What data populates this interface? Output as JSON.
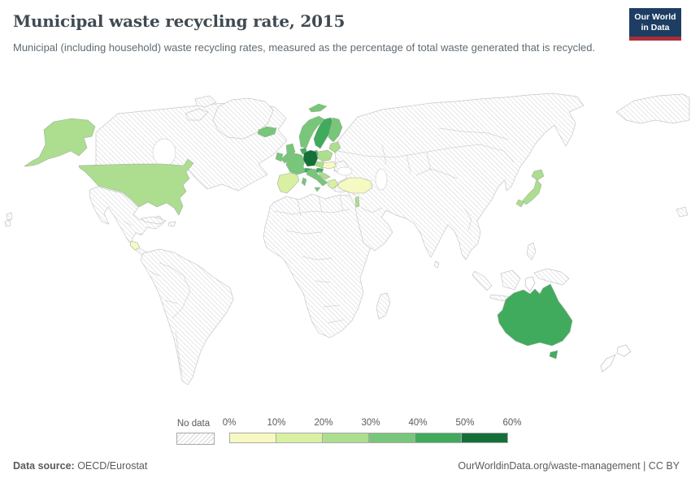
{
  "header": {
    "title": "Municipal waste recycling rate, 2015",
    "subtitle": "Municipal (including household) waste recycling rates, measured as the percentage of total waste generated that is recycled.",
    "logo": {
      "line1": "Our World",
      "line2": "in Data",
      "bg_color": "#1d3d63",
      "accent_color": "#a82f38"
    }
  },
  "legend": {
    "no_data_label": "No data",
    "ticks": [
      "0%",
      "10%",
      "20%",
      "30%",
      "40%",
      "50%",
      "60%"
    ],
    "bins": [
      {
        "label": "0%-10%",
        "color": "#f7f9c2"
      },
      {
        "label": "10%-20%",
        "color": "#d9f0a3"
      },
      {
        "label": "20%-30%",
        "color": "#addd8e"
      },
      {
        "label": "30%-40%",
        "color": "#78c679"
      },
      {
        "label": "40%-50%",
        "color": "#41ab5d"
      },
      {
        "label": "50%-60%",
        "color": "#156f38"
      }
    ]
  },
  "footer": {
    "source_label": "Data source:",
    "source_value": " OECD/Eurostat",
    "right_text": "OurWorldinData.org/waste-management | CC BY"
  },
  "chart_data": {
    "type": "choropleth",
    "title": "Municipal waste recycling rate, 2015",
    "unit": "%",
    "scale_bins": [
      "0-10%",
      "10-20%",
      "20-30%",
      "30-40%",
      "40-50%",
      "50-60%"
    ],
    "countries": [
      {
        "id": "united-states",
        "name": "United States",
        "value": 26,
        "bin": 2
      },
      {
        "id": "costa-rica",
        "name": "Costa Rica",
        "value": 7,
        "bin": 0
      },
      {
        "id": "iceland",
        "name": "Iceland",
        "value": 35,
        "bin": 3
      },
      {
        "id": "norway",
        "name": "Norway",
        "value": 38,
        "bin": 3
      },
      {
        "id": "svalbard",
        "name": "Svalbard (Norway)",
        "value": 38,
        "bin": 3
      },
      {
        "id": "sweden",
        "name": "Sweden",
        "value": 48,
        "bin": 4
      },
      {
        "id": "finland",
        "name": "Finland",
        "value": 38,
        "bin": 3
      },
      {
        "id": "denmark",
        "name": "Denmark",
        "value": 45,
        "bin": 4
      },
      {
        "id": "united-kingdom",
        "name": "United Kingdom",
        "value": 39,
        "bin": 3
      },
      {
        "id": "ireland",
        "name": "Ireland",
        "value": 38,
        "bin": 3
      },
      {
        "id": "france",
        "name": "France",
        "value": 38,
        "bin": 3
      },
      {
        "id": "benelux",
        "name": "Belgium & Netherlands",
        "value": 47,
        "bin": 4
      },
      {
        "id": "germany",
        "name": "Germany",
        "value": 58,
        "bin": 5
      },
      {
        "id": "poland",
        "name": "Poland",
        "value": 26,
        "bin": 2
      },
      {
        "id": "czechia",
        "name": "Czechia",
        "value": 25,
        "bin": 2
      },
      {
        "id": "austria",
        "name": "Austria",
        "value": 48,
        "bin": 4
      },
      {
        "id": "switzerland",
        "name": "Switzerland",
        "value": 48,
        "bin": 4
      },
      {
        "id": "hungary-slovakia",
        "name": "Slovakia & Hungary",
        "value": 8,
        "bin": 0
      },
      {
        "id": "baltics",
        "name": "Baltic states",
        "value": 25,
        "bin": 2
      },
      {
        "id": "slovenia-croatia",
        "name": "Slovenia & Croatia",
        "value": 25,
        "bin": 2
      },
      {
        "id": "italy",
        "name": "Italy",
        "value": 38,
        "bin": 3
      },
      {
        "id": "greece",
        "name": "Greece",
        "value": 15,
        "bin": 1
      },
      {
        "id": "spain-portugal",
        "name": "Spain & Portugal",
        "value": 17,
        "bin": 1
      },
      {
        "id": "turkey",
        "name": "Turkey",
        "value": 8,
        "bin": 0
      },
      {
        "id": "israel",
        "name": "Israel",
        "value": 25,
        "bin": 2
      },
      {
        "id": "japan",
        "name": "Japan",
        "value": 22,
        "bin": 2
      },
      {
        "id": "australia",
        "name": "Australia",
        "value": 45,
        "bin": 4
      }
    ],
    "no_data_regions": [
      "Canada",
      "Greenland",
      "Mexico",
      "Cuba",
      "South America",
      "Africa",
      "Russia",
      "Eastern Europe (Balkans)",
      "Middle East",
      "Central Asia",
      "China",
      "India",
      "Southeast Asia",
      "Indonesia",
      "South Korea",
      "Papua New Guinea",
      "New Zealand"
    ]
  }
}
